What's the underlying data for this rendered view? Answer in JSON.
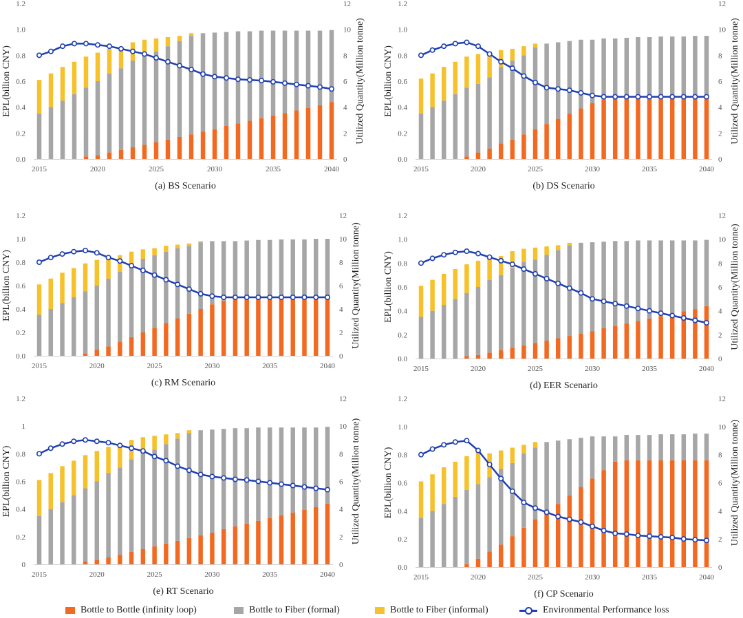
{
  "colors": {
    "b2b": "#f26a21",
    "formal": "#a6a6a6",
    "informal": "#f6c12a",
    "epl_line": "#1f3fb0",
    "axis_text": "#555555",
    "grid": "#d9d9d9"
  },
  "legend": {
    "b2b": "Bottle to Bottle (infinity loop)",
    "formal": "Bottle to Fiber (formal)",
    "informal": "Bottle to Fiber (informal)",
    "line": "Environmental Performance loss"
  },
  "chart_data": [
    {
      "type": "bar",
      "title": "(a) BS Scenario",
      "ylabel": "EPL(billion CNY)",
      "y2label": "Utilized Quantity(Million tonne)",
      "ylim": [
        0,
        1.2
      ],
      "y2lim": [
        0,
        12
      ],
      "y_ticks": [
        "0.0",
        "0.2",
        "0.4",
        "0.6",
        "0.8",
        "1.0",
        "1.2"
      ],
      "y2_ticks": [
        "0",
        "2",
        "4",
        "6",
        "8",
        "10",
        "12"
      ],
      "x_ticks": [
        "2015",
        "2020",
        "2025",
        "2030",
        "2035",
        "2040"
      ],
      "categories": [
        2015,
        2016,
        2017,
        2018,
        2019,
        2020,
        2021,
        2022,
        2023,
        2024,
        2025,
        2026,
        2027,
        2028,
        2029,
        2030,
        2031,
        2032,
        2033,
        2034,
        2035,
        2036,
        2037,
        2038,
        2039,
        2040
      ],
      "b2b": [
        0,
        0,
        0,
        0,
        0.02,
        0.03,
        0.05,
        0.07,
        0.09,
        0.11,
        0.13,
        0.15,
        0.17,
        0.19,
        0.21,
        0.23,
        0.255,
        0.275,
        0.295,
        0.315,
        0.335,
        0.355,
        0.375,
        0.395,
        0.415,
        0.44
      ],
      "formal": [
        0.35,
        0.4,
        0.45,
        0.5,
        0.53,
        0.57,
        0.61,
        0.63,
        0.67,
        0.7,
        0.7,
        0.72,
        0.74,
        0.76,
        0.76,
        0.745,
        0.725,
        0.71,
        0.69,
        0.675,
        0.655,
        0.635,
        0.615,
        0.595,
        0.575,
        0.555
      ],
      "informal": [
        0.26,
        0.26,
        0.26,
        0.25,
        0.24,
        0.22,
        0.19,
        0.16,
        0.14,
        0.11,
        0.1,
        0.07,
        0.04,
        0.02,
        0,
        0,
        0,
        0,
        0,
        0,
        0,
        0,
        0,
        0,
        0,
        0
      ],
      "epl": [
        0.8,
        0.83,
        0.87,
        0.89,
        0.89,
        0.88,
        0.87,
        0.85,
        0.83,
        0.81,
        0.78,
        0.75,
        0.72,
        0.69,
        0.655,
        0.635,
        0.625,
        0.615,
        0.61,
        0.605,
        0.595,
        0.585,
        0.575,
        0.565,
        0.555,
        0.54
      ]
    },
    {
      "type": "bar",
      "title": "(b) DS Scenario",
      "ylabel": "EPL(billion CNY)",
      "y2label": "Utilized Quantity(Million tonne)",
      "ylim": [
        0,
        1.2
      ],
      "y2lim": [
        0,
        12
      ],
      "y_ticks": [
        "0.0",
        "0.2",
        "0.4",
        "0.6",
        "0.8",
        "1.0",
        "1.2"
      ],
      "y2_ticks": [
        "0",
        "2",
        "4",
        "6",
        "8",
        "10",
        "12"
      ],
      "x_ticks": [
        "2015",
        "2020",
        "2025",
        "2030",
        "2035",
        "2040"
      ],
      "categories": [
        2015,
        2016,
        2017,
        2018,
        2019,
        2020,
        2021,
        2022,
        2023,
        2024,
        2025,
        2026,
        2027,
        2028,
        2029,
        2030,
        2031,
        2032,
        2033,
        2034,
        2035,
        2036,
        2037,
        2038,
        2039,
        2040
      ],
      "b2b": [
        0,
        0,
        0,
        0,
        0.02,
        0.05,
        0.08,
        0.12,
        0.15,
        0.19,
        0.23,
        0.27,
        0.31,
        0.35,
        0.39,
        0.43,
        0.46,
        0.47,
        0.47,
        0.47,
        0.47,
        0.47,
        0.47,
        0.47,
        0.47,
        0.47
      ],
      "formal": [
        0.35,
        0.4,
        0.45,
        0.5,
        0.53,
        0.53,
        0.55,
        0.59,
        0.61,
        0.61,
        0.63,
        0.62,
        0.59,
        0.56,
        0.53,
        0.49,
        0.47,
        0.46,
        0.465,
        0.47,
        0.47,
        0.475,
        0.475,
        0.475,
        0.48,
        0.48
      ],
      "informal": [
        0.27,
        0.26,
        0.26,
        0.25,
        0.24,
        0.23,
        0.2,
        0.13,
        0.09,
        0.07,
        0.03,
        0,
        0,
        0,
        0,
        0,
        0,
        0,
        0,
        0,
        0,
        0,
        0,
        0,
        0,
        0
      ],
      "epl": [
        0.8,
        0.84,
        0.87,
        0.89,
        0.9,
        0.87,
        0.81,
        0.75,
        0.7,
        0.64,
        0.59,
        0.55,
        0.54,
        0.53,
        0.51,
        0.49,
        0.48,
        0.48,
        0.48,
        0.48,
        0.48,
        0.48,
        0.48,
        0.48,
        0.48,
        0.48
      ]
    },
    {
      "type": "bar",
      "title": "(c) RM Scenario",
      "ylabel": "EPL(billion CNY)",
      "y2label": "Utilized Quantity(Million tonne)",
      "ylim": [
        0,
        1.2
      ],
      "y2lim": [
        0,
        12
      ],
      "y_ticks": [
        "0.0",
        "0.2",
        "0.4",
        "0.6",
        "0.8",
        "1.0",
        "1.2"
      ],
      "y2_ticks": [
        "0",
        "2",
        "4",
        "6",
        "8",
        "10",
        "12"
      ],
      "x_ticks": [
        "2015",
        "2020",
        "2025",
        "2030",
        "2035",
        "2040"
      ],
      "categories": [
        2015,
        2016,
        2017,
        2018,
        2019,
        2020,
        2021,
        2022,
        2023,
        2024,
        2025,
        2026,
        2027,
        2028,
        2029,
        2030,
        2031,
        2032,
        2033,
        2034,
        2035,
        2036,
        2037,
        2038,
        2039,
        2040
      ],
      "b2b": [
        0,
        0,
        0,
        0,
        0.02,
        0.05,
        0.08,
        0.12,
        0.16,
        0.2,
        0.24,
        0.28,
        0.32,
        0.36,
        0.4,
        0.44,
        0.47,
        0.48,
        0.48,
        0.48,
        0.48,
        0.48,
        0.48,
        0.48,
        0.48,
        0.48
      ],
      "formal": [
        0.35,
        0.4,
        0.45,
        0.5,
        0.53,
        0.55,
        0.58,
        0.6,
        0.62,
        0.63,
        0.62,
        0.61,
        0.6,
        0.58,
        0.57,
        0.54,
        0.51,
        0.5,
        0.505,
        0.51,
        0.51,
        0.515,
        0.515,
        0.515,
        0.52,
        0.52
      ],
      "informal": [
        0.26,
        0.26,
        0.26,
        0.25,
        0.24,
        0.22,
        0.17,
        0.14,
        0.11,
        0.08,
        0.06,
        0.05,
        0.03,
        0.02,
        0.01,
        0,
        0,
        0,
        0,
        0,
        0,
        0,
        0,
        0,
        0,
        0
      ],
      "epl": [
        0.8,
        0.84,
        0.87,
        0.89,
        0.9,
        0.88,
        0.84,
        0.81,
        0.77,
        0.73,
        0.69,
        0.65,
        0.61,
        0.57,
        0.53,
        0.51,
        0.5,
        0.5,
        0.5,
        0.5,
        0.5,
        0.5,
        0.5,
        0.5,
        0.5,
        0.5
      ]
    },
    {
      "type": "bar",
      "title": "(d) EER Scenario",
      "ylabel": "EPL(billion CNY)",
      "y2label": "Utilized Quantity(Million tonne)",
      "ylim": [
        0,
        1.2
      ],
      "y2lim": [
        0,
        12
      ],
      "y_ticks": [
        "0.0",
        "0.2",
        "0.4",
        "0.6",
        "0.8",
        "1.0",
        "1.2"
      ],
      "y2_ticks": [
        "0",
        "2",
        "4",
        "6",
        "8",
        "10",
        "12"
      ],
      "x_ticks": [
        "2015",
        "2020",
        "2025",
        "2030",
        "2035",
        "2040"
      ],
      "categories": [
        2015,
        2016,
        2017,
        2018,
        2019,
        2020,
        2021,
        2022,
        2023,
        2024,
        2025,
        2026,
        2027,
        2028,
        2029,
        2030,
        2031,
        2032,
        2033,
        2034,
        2035,
        2036,
        2037,
        2038,
        2039,
        2040
      ],
      "b2b": [
        0,
        0,
        0,
        0,
        0.02,
        0.03,
        0.05,
        0.07,
        0.09,
        0.11,
        0.13,
        0.15,
        0.17,
        0.19,
        0.21,
        0.23,
        0.255,
        0.275,
        0.295,
        0.315,
        0.335,
        0.355,
        0.375,
        0.395,
        0.415,
        0.44
      ],
      "formal": [
        0.35,
        0.4,
        0.45,
        0.5,
        0.53,
        0.57,
        0.61,
        0.63,
        0.67,
        0.7,
        0.7,
        0.72,
        0.74,
        0.76,
        0.76,
        0.745,
        0.725,
        0.71,
        0.69,
        0.675,
        0.655,
        0.635,
        0.615,
        0.595,
        0.575,
        0.555
      ],
      "informal": [
        0.26,
        0.26,
        0.26,
        0.25,
        0.24,
        0.22,
        0.19,
        0.16,
        0.14,
        0.11,
        0.1,
        0.07,
        0.04,
        0.02,
        0,
        0,
        0,
        0,
        0,
        0,
        0,
        0,
        0,
        0,
        0,
        0
      ],
      "epl": [
        0.8,
        0.84,
        0.87,
        0.89,
        0.9,
        0.88,
        0.85,
        0.82,
        0.79,
        0.75,
        0.71,
        0.67,
        0.63,
        0.59,
        0.55,
        0.5,
        0.48,
        0.46,
        0.44,
        0.42,
        0.4,
        0.38,
        0.36,
        0.34,
        0.32,
        0.3
      ]
    },
    {
      "type": "bar",
      "title": "(e) RT Scenario",
      "ylabel": "EPL(billion CNY)",
      "y2label": "Utilized Quantity(Million tonne)",
      "ylim": [
        0,
        1.2
      ],
      "y2lim": [
        0,
        12
      ],
      "y_ticks": [
        "0",
        "0.2",
        "0.4",
        "0.6",
        "0.8",
        "1",
        "1.2"
      ],
      "y2_ticks": [
        "0",
        "2",
        "4",
        "6",
        "8",
        "10",
        "12"
      ],
      "x_ticks": [
        "2015",
        "2020",
        "2025",
        "2030",
        "2035",
        "2040"
      ],
      "categories": [
        2015,
        2016,
        2017,
        2018,
        2019,
        2020,
        2021,
        2022,
        2023,
        2024,
        2025,
        2026,
        2027,
        2028,
        2029,
        2030,
        2031,
        2032,
        2033,
        2034,
        2035,
        2036,
        2037,
        2038,
        2039,
        2040
      ],
      "b2b": [
        0,
        0,
        0,
        0,
        0.02,
        0.03,
        0.05,
        0.07,
        0.09,
        0.11,
        0.13,
        0.15,
        0.17,
        0.19,
        0.21,
        0.23,
        0.255,
        0.275,
        0.295,
        0.315,
        0.335,
        0.355,
        0.375,
        0.395,
        0.415,
        0.44
      ],
      "formal": [
        0.35,
        0.4,
        0.45,
        0.5,
        0.53,
        0.57,
        0.61,
        0.63,
        0.67,
        0.7,
        0.7,
        0.72,
        0.74,
        0.76,
        0.76,
        0.745,
        0.725,
        0.71,
        0.69,
        0.675,
        0.655,
        0.635,
        0.615,
        0.595,
        0.575,
        0.555
      ],
      "informal": [
        0.26,
        0.26,
        0.26,
        0.25,
        0.24,
        0.22,
        0.19,
        0.16,
        0.14,
        0.11,
        0.1,
        0.07,
        0.04,
        0.02,
        0,
        0,
        0,
        0,
        0,
        0,
        0,
        0,
        0,
        0,
        0,
        0
      ],
      "epl": [
        0.8,
        0.84,
        0.87,
        0.89,
        0.9,
        0.89,
        0.88,
        0.86,
        0.84,
        0.82,
        0.78,
        0.75,
        0.71,
        0.68,
        0.65,
        0.635,
        0.625,
        0.615,
        0.61,
        0.6,
        0.59,
        0.58,
        0.57,
        0.56,
        0.55,
        0.54
      ]
    },
    {
      "type": "bar",
      "title": "(f) CP Scenario",
      "ylabel": "EPL(billion CNY)",
      "y2label": "Utilized Quantity(Million tonne)",
      "ylim": [
        0,
        1.2
      ],
      "y2lim": [
        0,
        12
      ],
      "y_ticks": [
        "0.0",
        "0.2",
        "0.4",
        "0.6",
        "0.8",
        "1.0",
        "1.2"
      ],
      "y2_ticks": [
        "0",
        "2",
        "4",
        "6",
        "8",
        "10",
        "12"
      ],
      "x_ticks": [
        "2015",
        "2020",
        "2025",
        "2030",
        "2035",
        "2040"
      ],
      "categories": [
        2015,
        2016,
        2017,
        2018,
        2019,
        2020,
        2021,
        2022,
        2023,
        2024,
        2025,
        2026,
        2027,
        2028,
        2029,
        2030,
        2031,
        2032,
        2033,
        2034,
        2035,
        2036,
        2037,
        2038,
        2039,
        2040
      ],
      "b2b": [
        0,
        0,
        0,
        0,
        0.02,
        0.06,
        0.11,
        0.16,
        0.22,
        0.28,
        0.34,
        0.4,
        0.45,
        0.51,
        0.57,
        0.63,
        0.69,
        0.75,
        0.76,
        0.76,
        0.76,
        0.76,
        0.76,
        0.76,
        0.76,
        0.76
      ],
      "formal": [
        0.35,
        0.4,
        0.45,
        0.5,
        0.53,
        0.53,
        0.53,
        0.54,
        0.52,
        0.53,
        0.51,
        0.49,
        0.45,
        0.4,
        0.35,
        0.3,
        0.24,
        0.18,
        0.18,
        0.18,
        0.18,
        0.185,
        0.185,
        0.185,
        0.19,
        0.19
      ],
      "informal": [
        0.26,
        0.26,
        0.26,
        0.25,
        0.24,
        0.23,
        0.17,
        0.13,
        0.11,
        0.06,
        0.04,
        0,
        0,
        0,
        0,
        0,
        0,
        0,
        0,
        0,
        0,
        0,
        0,
        0,
        0,
        0
      ],
      "epl": [
        0.8,
        0.84,
        0.87,
        0.89,
        0.9,
        0.83,
        0.73,
        0.63,
        0.54,
        0.46,
        0.42,
        0.39,
        0.36,
        0.34,
        0.32,
        0.29,
        0.26,
        0.24,
        0.235,
        0.225,
        0.22,
        0.215,
        0.21,
        0.2,
        0.195,
        0.19
      ]
    }
  ]
}
